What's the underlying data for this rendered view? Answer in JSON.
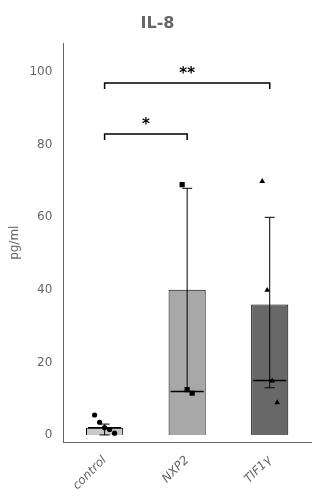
{
  "chart_data": {
    "type": "bar",
    "title": "IL-8",
    "ylabel": "pg/ml",
    "categories": [
      "control",
      "NXP2",
      "TIF1γ"
    ],
    "values": [
      2.0,
      40.0,
      36.0
    ],
    "colors": [
      "#c8c8c8",
      "#a8a8a8",
      "#686868"
    ],
    "error_low": [
      0.0,
      12.0,
      13.0
    ],
    "error_high": [
      3.0,
      68.0,
      60.0
    ],
    "medians": [
      2.0,
      12.0,
      15.0
    ],
    "points": [
      {
        "marker": "circle",
        "values": [
          5.5,
          3.5,
          2.0,
          1.5,
          0.5
        ]
      },
      {
        "marker": "square",
        "values": [
          69.0,
          12.5,
          11.5
        ]
      },
      {
        "marker": "triangle",
        "values": [
          70.0,
          40.0,
          15.0,
          9.0
        ]
      }
    ],
    "significance": [
      {
        "from": "control",
        "to": "NXP2",
        "y": 83,
        "label": "*"
      },
      {
        "from": "control",
        "to": "TIF1γ",
        "y": 97,
        "label": "**"
      }
    ],
    "ylim": [
      -2,
      108
    ],
    "yticks": [
      0,
      20,
      40,
      60,
      80,
      100
    ],
    "grid": false
  }
}
